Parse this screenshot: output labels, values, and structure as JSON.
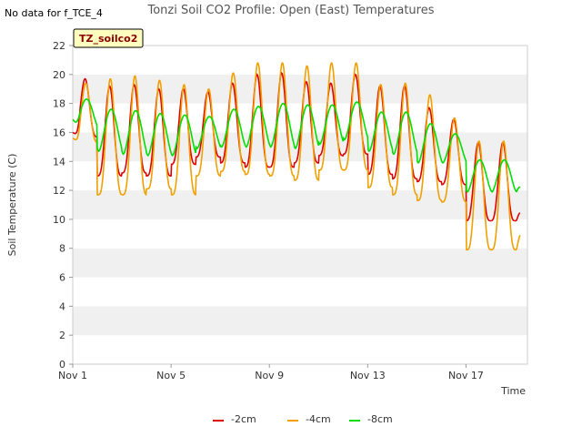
{
  "chart_data": {
    "type": "line",
    "title": "Tonzi Soil CO2 Profile: Open (East) Temperatures",
    "corner_note": "No data for f_TCE_4",
    "badge": "TZ_soilco2",
    "xlabel": "Time",
    "ylabel": "Soil Temperature (C)",
    "xlim": [
      1,
      19.5
    ],
    "ylim": [
      0,
      22
    ],
    "yticks": [
      0,
      2,
      4,
      6,
      8,
      10,
      12,
      14,
      16,
      18,
      20,
      22
    ],
    "xticks": [
      {
        "value": 1,
        "label": "Nov 1"
      },
      {
        "value": 5,
        "label": "Nov 5"
      },
      {
        "value": 9,
        "label": "Nov 9"
      },
      {
        "value": 13,
        "label": "Nov 13"
      },
      {
        "value": 17,
        "label": "Nov 17"
      }
    ],
    "grid": "horizontal-bands",
    "legend_position": "bottom",
    "series": [
      {
        "name": "-2cm",
        "color": "#dd0000",
        "days": [
          {
            "min": 15.7,
            "max": 19.7
          },
          {
            "min": 13.0,
            "max": 19.2
          },
          {
            "min": 13.2,
            "max": 19.3
          },
          {
            "min": 13.0,
            "max": 19.0
          },
          {
            "min": 13.8,
            "max": 19.0
          },
          {
            "min": 14.3,
            "max": 18.8
          },
          {
            "min": 13.9,
            "max": 19.4
          },
          {
            "min": 13.6,
            "max": 20.0
          },
          {
            "min": 13.6,
            "max": 20.1
          },
          {
            "min": 13.9,
            "max": 19.5
          },
          {
            "min": 14.4,
            "max": 19.4
          },
          {
            "min": 14.5,
            "max": 20.0
          },
          {
            "min": 13.1,
            "max": 19.2
          },
          {
            "min": 12.8,
            "max": 19.2
          },
          {
            "min": 12.6,
            "max": 17.7
          },
          {
            "min": 12.4,
            "max": 16.9
          },
          {
            "min": 9.9,
            "max": 15.3
          }
        ],
        "start": 16.0,
        "end": 10.4
      },
      {
        "name": "-4cm",
        "color": "#f0a000",
        "days": [
          {
            "min": 15.3,
            "max": 19.4
          },
          {
            "min": 11.7,
            "max": 19.7
          },
          {
            "min": 11.7,
            "max": 19.9
          },
          {
            "min": 12.1,
            "max": 19.6
          },
          {
            "min": 11.7,
            "max": 19.3
          },
          {
            "min": 13.0,
            "max": 19.0
          },
          {
            "min": 13.3,
            "max": 20.1
          },
          {
            "min": 13.1,
            "max": 20.8
          },
          {
            "min": 13.0,
            "max": 20.8
          },
          {
            "min": 12.7,
            "max": 20.6
          },
          {
            "min": 13.4,
            "max": 20.8
          },
          {
            "min": 13.4,
            "max": 20.8
          },
          {
            "min": 12.2,
            "max": 19.3
          },
          {
            "min": 11.7,
            "max": 19.4
          },
          {
            "min": 11.3,
            "max": 18.6
          },
          {
            "min": 11.2,
            "max": 17.0
          },
          {
            "min": 7.9,
            "max": 15.4
          }
        ],
        "start": 15.6,
        "end": 8.9
      },
      {
        "name": "-8cm",
        "color": "#00dd00",
        "days": [
          {
            "min": 16.3,
            "max": 18.3
          },
          {
            "min": 14.7,
            "max": 17.6
          },
          {
            "min": 14.5,
            "max": 17.5
          },
          {
            "min": 14.4,
            "max": 17.3
          },
          {
            "min": 14.4,
            "max": 17.2
          },
          {
            "min": 14.9,
            "max": 17.1
          },
          {
            "min": 15.0,
            "max": 17.6
          },
          {
            "min": 15.0,
            "max": 17.8
          },
          {
            "min": 15.0,
            "max": 18.0
          },
          {
            "min": 14.9,
            "max": 17.9
          },
          {
            "min": 15.2,
            "max": 17.9
          },
          {
            "min": 15.5,
            "max": 18.1
          },
          {
            "min": 14.7,
            "max": 17.4
          },
          {
            "min": 14.5,
            "max": 17.4
          },
          {
            "min": 13.9,
            "max": 16.6
          },
          {
            "min": 13.9,
            "max": 15.9
          },
          {
            "min": 11.9,
            "max": 14.1
          }
        ],
        "start": 16.9,
        "end": 12.2
      }
    ]
  }
}
